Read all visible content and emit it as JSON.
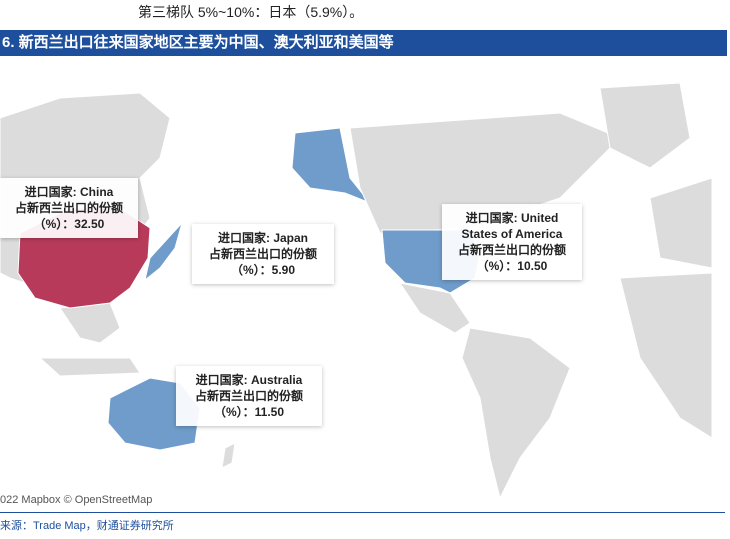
{
  "intro_text": "第三梯队 5%~10%：日本（5.9%）。",
  "title": "6. 新西兰出口往来国家地区主要为中国、澳大利亚和美国等",
  "attribution": "022 Mapbox © OpenStreetMap",
  "source": "来源：Trade Map，财通证券研究所",
  "colors": {
    "highlight_china": "#b83a5a",
    "highlight_other": "#6f9ccb",
    "land": "#d9d9d9",
    "water": "#ffffff",
    "title_bar": "#1d4f9c"
  },
  "callouts": [
    {
      "id": "china",
      "line1": "进口国家: China",
      "line2": "占新西兰出口的份额",
      "line3": "（%）：32.50"
    },
    {
      "id": "japan",
      "line1": "进口国家: Japan",
      "line2": "占新西兰出口的份额",
      "line3": "（%）：5.90"
    },
    {
      "id": "usa",
      "line1": "进口国家: United States of America",
      "line2": "占新西兰出口的份额",
      "line3": "（%）：10.50"
    },
    {
      "id": "australia",
      "line1": "进口国家: Australia",
      "line2": "占新西兰出口的份额",
      "line3": "（%）：11.50"
    }
  ]
}
